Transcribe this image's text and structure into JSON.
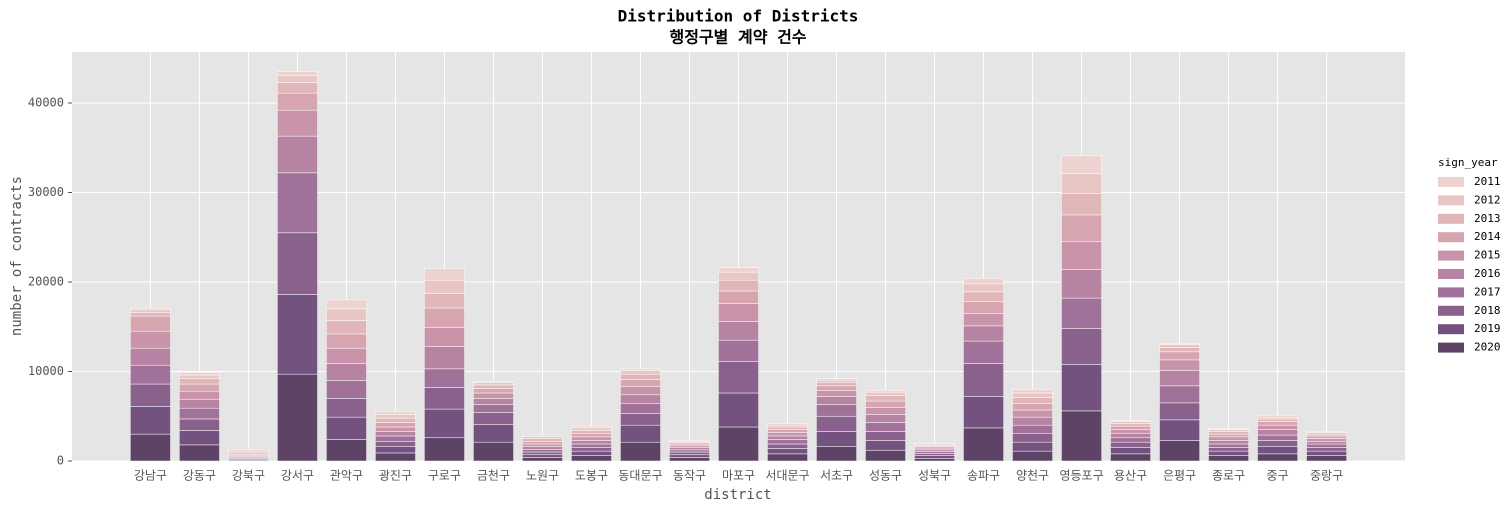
{
  "chart_data": {
    "type": "stacked_bar",
    "title": "Distribution of Districts",
    "subtitle": "행정구별 계약 건수",
    "x_label": "district",
    "y_label": "number of contracts",
    "legend_title": "sign_year",
    "legend_position": "right",
    "grid": true,
    "categories": [
      "강남구",
      "강동구",
      "강북구",
      "강서구",
      "관악구",
      "광진구",
      "구로구",
      "금천구",
      "노원구",
      "도봉구",
      "동대문구",
      "동작구",
      "마포구",
      "서대문구",
      "서초구",
      "성동구",
      "성북구",
      "송파구",
      "양천구",
      "영등포구",
      "용산구",
      "은평구",
      "종로구",
      "중구",
      "중랑구"
    ],
    "series": [
      {
        "name": "2011",
        "color": "#ecd3d0",
        "values": [
          200,
          300,
          200,
          400,
          1000,
          300,
          1300,
          150,
          150,
          200,
          200,
          100,
          500,
          200,
          150,
          200,
          100,
          600,
          400,
          2000,
          100,
          100,
          100,
          200,
          100
        ]
      },
      {
        "name": "2012",
        "color": "#e7c6c4",
        "values": [
          300,
          400,
          200,
          800,
          1300,
          400,
          1500,
          250,
          250,
          300,
          400,
          150,
          900,
          200,
          250,
          400,
          150,
          900,
          500,
          2200,
          200,
          300,
          200,
          200,
          200
        ]
      },
      {
        "name": "2013",
        "color": "#e0b6b9",
        "values": [
          400,
          600,
          150,
          1200,
          1500,
          500,
          1600,
          400,
          300,
          300,
          600,
          150,
          1200,
          300,
          400,
          600,
          150,
          1100,
          700,
          2400,
          300,
          500,
          300,
          300,
          200
        ]
      },
      {
        "name": "2014",
        "color": "#d6a5b0",
        "values": [
          1700,
          800,
          150,
          1900,
          1600,
          500,
          2200,
          500,
          300,
          400,
          800,
          200,
          1400,
          300,
          500,
          700,
          150,
          1300,
          700,
          3000,
          400,
          900,
          300,
          400,
          300
        ]
      },
      {
        "name": "2015",
        "color": "#c994a9",
        "values": [
          1900,
          900,
          100,
          2900,
          1700,
          500,
          2100,
          600,
          300,
          400,
          900,
          200,
          2000,
          400,
          700,
          800,
          200,
          1400,
          800,
          3100,
          400,
          1200,
          400,
          500,
          300
        ]
      },
      {
        "name": "2016",
        "color": "#b783a2",
        "values": [
          1900,
          1000,
          100,
          4100,
          1900,
          500,
          2500,
          700,
          300,
          400,
          1000,
          250,
          2100,
          400,
          900,
          900,
          200,
          1700,
          900,
          3200,
          500,
          1700,
          400,
          600,
          300
        ]
      },
      {
        "name": "2017",
        "color": "#a17299",
        "values": [
          2100,
          1200,
          100,
          6700,
          2000,
          600,
          2100,
          900,
          300,
          400,
          1100,
          250,
          2400,
          500,
          1300,
          1000,
          200,
          2500,
          900,
          3400,
          500,
          1900,
          400,
          600,
          400
        ]
      },
      {
        "name": "2018",
        "color": "#8a618d",
        "values": [
          2500,
          1300,
          100,
          6900,
          2100,
          600,
          2400,
          1300,
          300,
          400,
          1300,
          300,
          3500,
          500,
          1700,
          1000,
          250,
          3700,
          1000,
          4000,
          600,
          1900,
          400,
          700,
          400
        ]
      },
      {
        "name": "2019",
        "color": "#74527f",
        "values": [
          3100,
          1600,
          100,
          8900,
          2500,
          700,
          3200,
          2000,
          300,
          500,
          1900,
          300,
          3800,
          600,
          1700,
          1100,
          300,
          3500,
          1000,
          5200,
          700,
          2300,
          500,
          800,
          500
        ]
      },
      {
        "name": "2020",
        "color": "#5d4467",
        "values": [
          3000,
          1800,
          100,
          9700,
          2400,
          900,
          2600,
          2100,
          400,
          600,
          2100,
          400,
          3800,
          800,
          1600,
          1200,
          300,
          3700,
          1100,
          5600,
          800,
          2300,
          600,
          800,
          600
        ]
      }
    ],
    "ylim": [
      0,
      45700
    ],
    "yticks": [
      0,
      10000,
      20000,
      30000,
      40000
    ]
  }
}
